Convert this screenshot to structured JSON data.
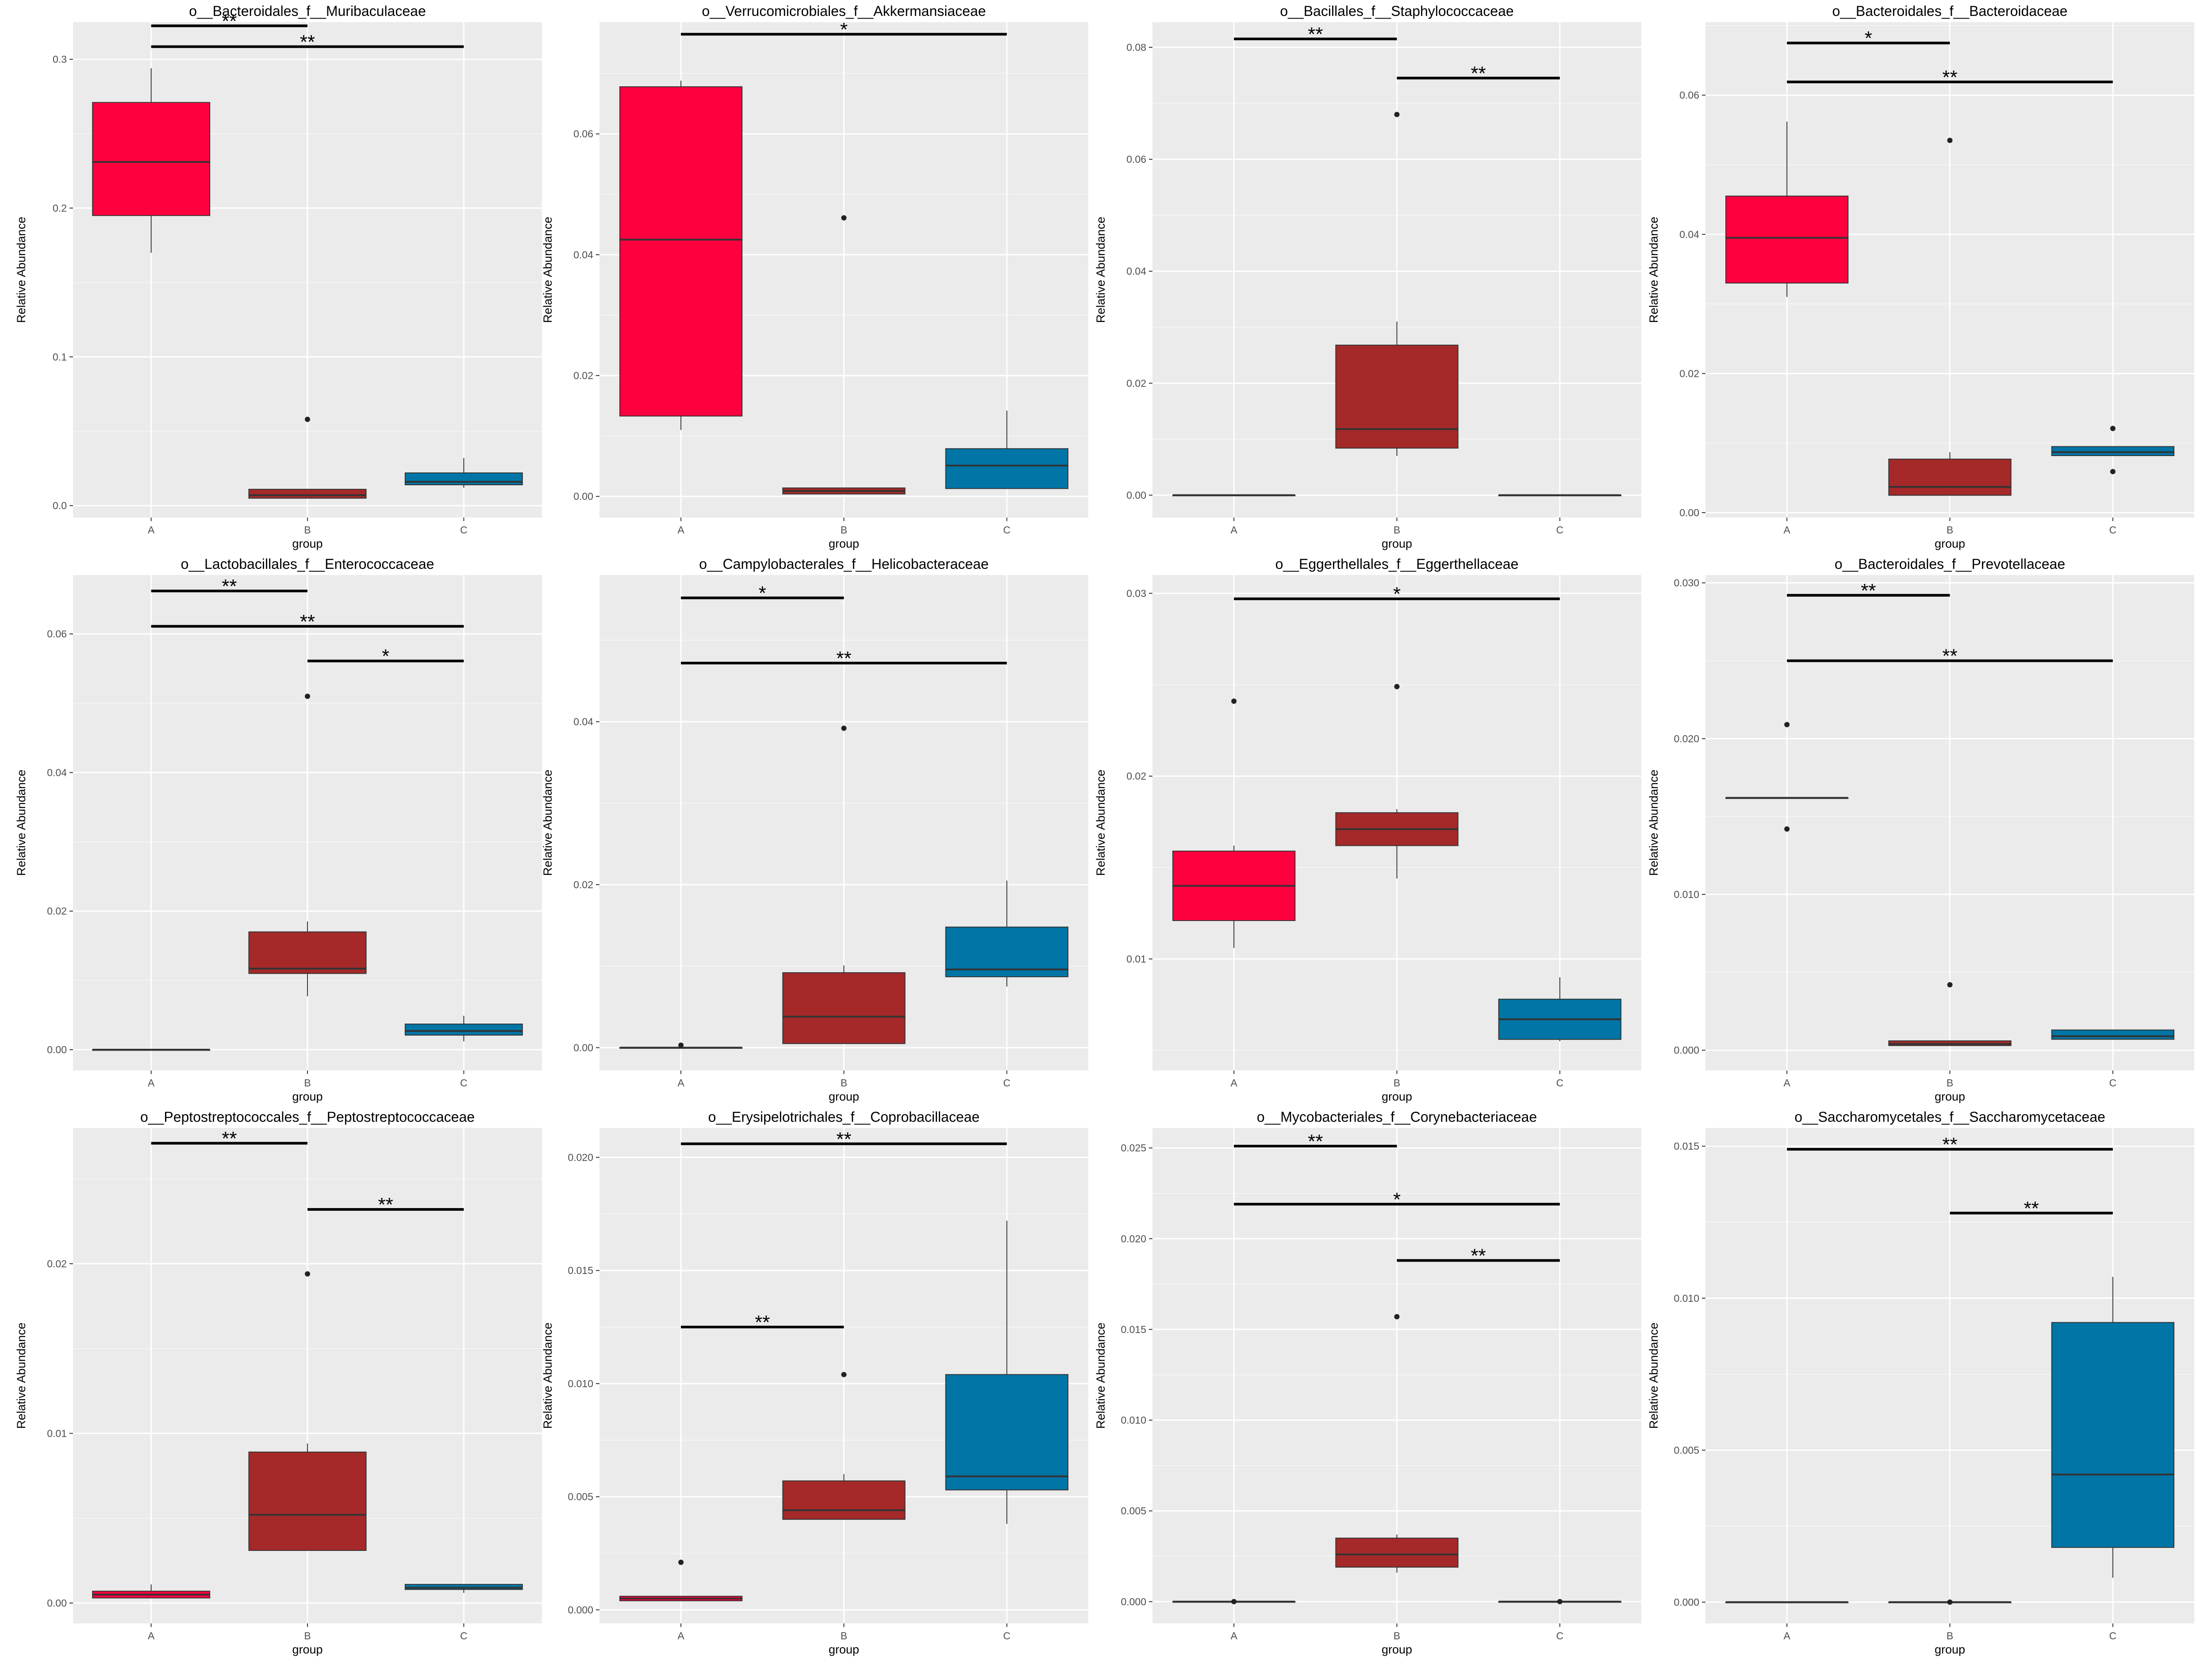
{
  "colors": {
    "A": "#ff003f",
    "B": "#a52929",
    "C": "#0075a6",
    "panel_bg": "#ebebeb",
    "grid": "#ffffff",
    "text": "#000000"
  },
  "chart_data": [
    {
      "type": "box",
      "title": "o__Bacteroidales_f__Muribaculaceae",
      "xlabel": "group",
      "ylabel": "Relative Abundance",
      "categories": [
        "A",
        "B",
        "C"
      ],
      "ylim": [
        -0.008,
        0.325
      ],
      "yticks": [
        0.0,
        0.1,
        0.2,
        0.3
      ],
      "ytick_labels": [
        "0.0",
        "0.1",
        "0.2",
        "0.3"
      ],
      "boxes": [
        {
          "group": "A",
          "whislo": 0.17,
          "q1": 0.195,
          "med": 0.231,
          "q3": 0.271,
          "whishi": 0.294,
          "outliers": []
        },
        {
          "group": "B",
          "whislo": 0.005,
          "q1": 0.005,
          "med": 0.007,
          "q3": 0.011,
          "whishi": 0.011,
          "outliers": [
            0.058
          ]
        },
        {
          "group": "C",
          "whislo": 0.012,
          "q1": 0.014,
          "med": 0.016,
          "q3": 0.022,
          "whishi": 0.032,
          "outliers": []
        }
      ],
      "significance": [
        {
          "from": "A",
          "to": "B",
          "y": 0.3225,
          "label": "**"
        },
        {
          "from": "A",
          "to": "C",
          "y": 0.3085,
          "label": "**"
        }
      ]
    },
    {
      "type": "box",
      "title": "o__Verrucomicrobiales_f__Akkermansiaceae",
      "xlabel": "group",
      "ylabel": "Relative Abundance",
      "categories": [
        "A",
        "B",
        "C"
      ],
      "ylim": [
        -0.0035,
        0.0785
      ],
      "yticks": [
        0.0,
        0.02,
        0.04,
        0.06
      ],
      "ytick_labels": [
        "0.00",
        "0.02",
        "0.04",
        "0.06"
      ],
      "boxes": [
        {
          "group": "A",
          "whislo": 0.011,
          "q1": 0.0133,
          "med": 0.0425,
          "q3": 0.0678,
          "whishi": 0.0688,
          "outliers": []
        },
        {
          "group": "B",
          "whislo": 0.0004,
          "q1": 0.0004,
          "med": 0.0009,
          "q3": 0.0014,
          "whishi": 0.0014,
          "outliers": [
            0.0461
          ]
        },
        {
          "group": "C",
          "whislo": 0.0013,
          "q1": 0.0013,
          "med": 0.0051,
          "q3": 0.0079,
          "whishi": 0.0142,
          "outliers": []
        }
      ],
      "significance": [
        {
          "from": "A",
          "to": "C",
          "y": 0.0765,
          "label": "*"
        }
      ]
    },
    {
      "type": "box",
      "title": "o__Bacillales_f__Staphylococcaceae",
      "xlabel": "group",
      "ylabel": "Relative Abundance",
      "categories": [
        "A",
        "B",
        "C"
      ],
      "ylim": [
        -0.004,
        0.0845
      ],
      "yticks": [
        0.0,
        0.02,
        0.04,
        0.06,
        0.08
      ],
      "ytick_labels": [
        "0.00",
        "0.02",
        "0.04",
        "0.06",
        "0.08"
      ],
      "boxes": [
        {
          "group": "A",
          "whislo": 0.0,
          "q1": 0.0,
          "med": 0.0,
          "q3": 0.0,
          "whishi": 0.0,
          "outliers": []
        },
        {
          "group": "B",
          "whislo": 0.007,
          "q1": 0.0084,
          "med": 0.0118,
          "q3": 0.0268,
          "whishi": 0.031,
          "outliers": [
            0.068
          ]
        },
        {
          "group": "C",
          "whislo": 0.0,
          "q1": 0.0,
          "med": 0.0,
          "q3": 0.0,
          "whishi": 0.0,
          "outliers": []
        }
      ],
      "significance": [
        {
          "from": "A",
          "to": "B",
          "y": 0.0815,
          "label": "**"
        },
        {
          "from": "B",
          "to": "C",
          "y": 0.0745,
          "label": "**"
        }
      ]
    },
    {
      "type": "box",
      "title": "o__Bacteroidales_f__Bacteroidaceae",
      "xlabel": "group",
      "ylabel": "Relative Abundance",
      "categories": [
        "A",
        "B",
        "C"
      ],
      "ylim": [
        -0.0007,
        0.0705
      ],
      "yticks": [
        0.0,
        0.02,
        0.04,
        0.06
      ],
      "ytick_labels": [
        "0.00",
        "0.02",
        "0.04",
        "0.06"
      ],
      "boxes": [
        {
          "group": "A",
          "whislo": 0.031,
          "q1": 0.033,
          "med": 0.0395,
          "q3": 0.0455,
          "whishi": 0.0562,
          "outliers": []
        },
        {
          "group": "B",
          "whislo": 0.0025,
          "q1": 0.0025,
          "med": 0.0037,
          "q3": 0.0077,
          "whishi": 0.0087,
          "outliers": [
            0.0535
          ]
        },
        {
          "group": "C",
          "whislo": 0.0082,
          "q1": 0.0082,
          "med": 0.0087,
          "q3": 0.0095,
          "whishi": 0.0095,
          "outliers": [
            0.0121,
            0.0059
          ]
        }
      ],
      "significance": [
        {
          "from": "A",
          "to": "B",
          "y": 0.0675,
          "label": "*"
        },
        {
          "from": "A",
          "to": "C",
          "y": 0.0619,
          "label": "**"
        }
      ]
    },
    {
      "type": "box",
      "title": "o__Lactobacillales_f__Enterococcaceae",
      "xlabel": "group",
      "ylabel": "Relative Abundance",
      "categories": [
        "A",
        "B",
        "C"
      ],
      "ylim": [
        -0.003,
        0.0685
      ],
      "yticks": [
        0.0,
        0.02,
        0.04,
        0.06
      ],
      "ytick_labels": [
        "0.00",
        "0.02",
        "0.04",
        "0.06"
      ],
      "boxes": [
        {
          "group": "A",
          "whislo": 0.0,
          "q1": 0.0,
          "med": 0.0,
          "q3": 0.0,
          "whishi": 0.0,
          "outliers": []
        },
        {
          "group": "B",
          "whislo": 0.0077,
          "q1": 0.011,
          "med": 0.0117,
          "q3": 0.017,
          "whishi": 0.0185,
          "outliers": [
            0.051
          ]
        },
        {
          "group": "C",
          "whislo": 0.0012,
          "q1": 0.0021,
          "med": 0.0027,
          "q3": 0.0037,
          "whishi": 0.0049,
          "outliers": []
        }
      ],
      "significance": [
        {
          "from": "A",
          "to": "B",
          "y": 0.0662,
          "label": "**"
        },
        {
          "from": "A",
          "to": "C",
          "y": 0.0611,
          "label": "**"
        },
        {
          "from": "B",
          "to": "C",
          "y": 0.0561,
          "label": "*"
        }
      ]
    },
    {
      "type": "box",
      "title": "o__Campylobacterales_f__Helicobacteraceae",
      "xlabel": "group",
      "ylabel": "Relative Abundance",
      "categories": [
        "A",
        "B",
        "C"
      ],
      "ylim": [
        -0.0028,
        0.058
      ],
      "yticks": [
        0.0,
        0.02,
        0.04
      ],
      "ytick_labels": [
        "0.00",
        "0.02",
        "0.04"
      ],
      "boxes": [
        {
          "group": "A",
          "whislo": 0.0,
          "q1": 0.0,
          "med": 0.0,
          "q3": 0.0,
          "whishi": 0.0,
          "outliers": [
            0.0003
          ]
        },
        {
          "group": "B",
          "whislo": 0.0005,
          "q1": 0.0005,
          "med": 0.0038,
          "q3": 0.0092,
          "whishi": 0.0101,
          "outliers": [
            0.0392
          ]
        },
        {
          "group": "C",
          "whislo": 0.0075,
          "q1": 0.0087,
          "med": 0.0096,
          "q3": 0.0148,
          "whishi": 0.0205,
          "outliers": []
        }
      ],
      "significance": [
        {
          "from": "A",
          "to": "B",
          "y": 0.0552,
          "label": "*"
        },
        {
          "from": "A",
          "to": "C",
          "y": 0.0472,
          "label": "**"
        }
      ]
    },
    {
      "type": "box",
      "title": "o__Eggerthellales_f__Eggerthellaceae",
      "xlabel": "group",
      "ylabel": "Relative Abundance",
      "categories": [
        "A",
        "B",
        "C"
      ],
      "ylim": [
        0.0039,
        0.031
      ],
      "yticks": [
        0.01,
        0.02,
        0.03
      ],
      "ytick_labels": [
        "0.01",
        "0.02",
        "0.03"
      ],
      "boxes": [
        {
          "group": "A",
          "whislo": 0.0106,
          "q1": 0.0121,
          "med": 0.014,
          "q3": 0.0159,
          "whishi": 0.0162,
          "outliers": [
            0.0241
          ]
        },
        {
          "group": "B",
          "whislo": 0.0144,
          "q1": 0.0162,
          "med": 0.0171,
          "q3": 0.018,
          "whishi": 0.0182,
          "outliers": [
            0.0249
          ]
        },
        {
          "group": "C",
          "whislo": 0.0055,
          "q1": 0.0056,
          "med": 0.0067,
          "q3": 0.0078,
          "whishi": 0.009,
          "outliers": []
        }
      ],
      "significance": [
        {
          "from": "A",
          "to": "C",
          "y": 0.0297,
          "label": "*"
        }
      ]
    },
    {
      "type": "box",
      "title": "o__Bacteroidales_f__Prevotellaceae",
      "xlabel": "group",
      "ylabel": "Relative Abundance",
      "categories": [
        "A",
        "B",
        "C"
      ],
      "ylim": [
        -0.0013,
        0.0305
      ],
      "yticks": [
        0.0,
        0.01,
        0.02,
        0.03
      ],
      "ytick_labels": [
        "0.000",
        "0.010",
        "0.020",
        "0.030"
      ],
      "boxes": [
        {
          "group": "A",
          "whislo": 0.0162,
          "q1": 0.0162,
          "med": 0.0162,
          "q3": 0.0162,
          "whishi": 0.0162,
          "outliers": [
            0.0209,
            0.0142
          ]
        },
        {
          "group": "B",
          "whislo": 0.0003,
          "q1": 0.0003,
          "med": 0.0004,
          "q3": 0.0006,
          "whishi": 0.0006,
          "outliers": [
            0.0042
          ]
        },
        {
          "group": "C",
          "whislo": 0.0007,
          "q1": 0.0007,
          "med": 0.0009,
          "q3": 0.0013,
          "whishi": 0.0013,
          "outliers": []
        }
      ],
      "significance": [
        {
          "from": "A",
          "to": "B",
          "y": 0.0292,
          "label": "**"
        },
        {
          "from": "A",
          "to": "C",
          "y": 0.025,
          "label": "**"
        }
      ]
    },
    {
      "type": "box",
      "title": "o__Peptostreptococcales_f__Peptostreptococcaceae",
      "xlabel": "group",
      "ylabel": "Relative Abundance",
      "categories": [
        "A",
        "B",
        "C"
      ],
      "ylim": [
        -0.0012,
        0.028
      ],
      "yticks": [
        0.0,
        0.01,
        0.02
      ],
      "ytick_labels": [
        "0.00",
        "0.01",
        "0.02"
      ],
      "boxes": [
        {
          "group": "A",
          "whislo": 0.0003,
          "q1": 0.0003,
          "med": 0.0005,
          "q3": 0.0007,
          "whishi": 0.0011,
          "outliers": []
        },
        {
          "group": "B",
          "whislo": 0.0031,
          "q1": 0.0031,
          "med": 0.0052,
          "q3": 0.0089,
          "whishi": 0.0094,
          "outliers": [
            0.0194
          ]
        },
        {
          "group": "C",
          "whislo": 0.0006,
          "q1": 0.0008,
          "med": 0.0009,
          "q3": 0.0011,
          "whishi": 0.0011,
          "outliers": []
        }
      ],
      "significance": [
        {
          "from": "A",
          "to": "B",
          "y": 0.0271,
          "label": "**"
        },
        {
          "from": "B",
          "to": "C",
          "y": 0.0232,
          "label": "**"
        }
      ]
    },
    {
      "type": "box",
      "title": "o__Erysipelotrichales_f__Coprobacillaceae",
      "xlabel": "group",
      "ylabel": "Relative Abundance",
      "categories": [
        "A",
        "B",
        "C"
      ],
      "ylim": [
        -0.0006,
        0.0213
      ],
      "yticks": [
        0.0,
        0.005,
        0.01,
        0.015,
        0.02
      ],
      "ytick_labels": [
        "0.000",
        "0.005",
        "0.010",
        "0.015",
        "0.020"
      ],
      "boxes": [
        {
          "group": "A",
          "whislo": 0.0004,
          "q1": 0.0004,
          "med": 0.0005,
          "q3": 0.0006,
          "whishi": 0.0006,
          "outliers": [
            0.0021
          ]
        },
        {
          "group": "B",
          "whislo": 0.004,
          "q1": 0.004,
          "med": 0.0044,
          "q3": 0.0057,
          "whishi": 0.006,
          "outliers": [
            0.0104
          ]
        },
        {
          "group": "C",
          "whislo": 0.0038,
          "q1": 0.0053,
          "med": 0.0059,
          "q3": 0.0104,
          "whishi": 0.0172,
          "outliers": []
        }
      ],
      "significance": [
        {
          "from": "A",
          "to": "C",
          "y": 0.0206,
          "label": "**"
        },
        {
          "from": "A",
          "to": "B",
          "y": 0.0125,
          "label": "**"
        }
      ]
    },
    {
      "type": "box",
      "title": "o__Mycobacteriales_f__Corynebacteriaceae",
      "xlabel": "group",
      "ylabel": "Relative Abundance",
      "categories": [
        "A",
        "B",
        "C"
      ],
      "ylim": [
        -0.0012,
        0.0261
      ],
      "yticks": [
        0.0,
        0.005,
        0.01,
        0.015,
        0.02,
        0.025
      ],
      "ytick_labels": [
        "0.000",
        "0.005",
        "0.010",
        "0.015",
        "0.020",
        "0.025"
      ],
      "boxes": [
        {
          "group": "A",
          "whislo": 0.0,
          "q1": 0.0,
          "med": 0.0,
          "q3": 0.0,
          "whishi": 0.0,
          "outliers": [
            0.0
          ]
        },
        {
          "group": "B",
          "whislo": 0.0016,
          "q1": 0.0019,
          "med": 0.0026,
          "q3": 0.0035,
          "whishi": 0.0037,
          "outliers": [
            0.0157
          ]
        },
        {
          "group": "C",
          "whislo": 0.0,
          "q1": 0.0,
          "med": 0.0,
          "q3": 0.0,
          "whishi": 0.0,
          "outliers": [
            0.0
          ]
        }
      ],
      "significance": [
        {
          "from": "A",
          "to": "B",
          "y": 0.0251,
          "label": "**"
        },
        {
          "from": "A",
          "to": "C",
          "y": 0.0219,
          "label": "*"
        },
        {
          "from": "B",
          "to": "C",
          "y": 0.0188,
          "label": "**"
        }
      ]
    },
    {
      "type": "box",
      "title": "o__Saccharomycetales_f__Saccharomycetaceae",
      "xlabel": "group",
      "ylabel": "Relative Abundance",
      "categories": [
        "A",
        "B",
        "C"
      ],
      "ylim": [
        -0.0007,
        0.0156
      ],
      "yticks": [
        0.0,
        0.005,
        0.01,
        0.015
      ],
      "ytick_labels": [
        "0.000",
        "0.005",
        "0.010",
        "0.015"
      ],
      "boxes": [
        {
          "group": "A",
          "whislo": 0.0,
          "q1": 0.0,
          "med": 0.0,
          "q3": 0.0,
          "whishi": 0.0,
          "outliers": []
        },
        {
          "group": "B",
          "whislo": 0.0,
          "q1": 0.0,
          "med": 0.0,
          "q3": 0.0,
          "whishi": 0.0,
          "outliers": [
            0.0
          ]
        },
        {
          "group": "C",
          "whislo": 0.0008,
          "q1": 0.0018,
          "med": 0.0042,
          "q3": 0.0092,
          "whishi": 0.0107,
          "outliers": []
        }
      ],
      "significance": [
        {
          "from": "A",
          "to": "C",
          "y": 0.0149,
          "label": "**"
        },
        {
          "from": "B",
          "to": "C",
          "y": 0.0128,
          "label": "**"
        }
      ]
    }
  ]
}
